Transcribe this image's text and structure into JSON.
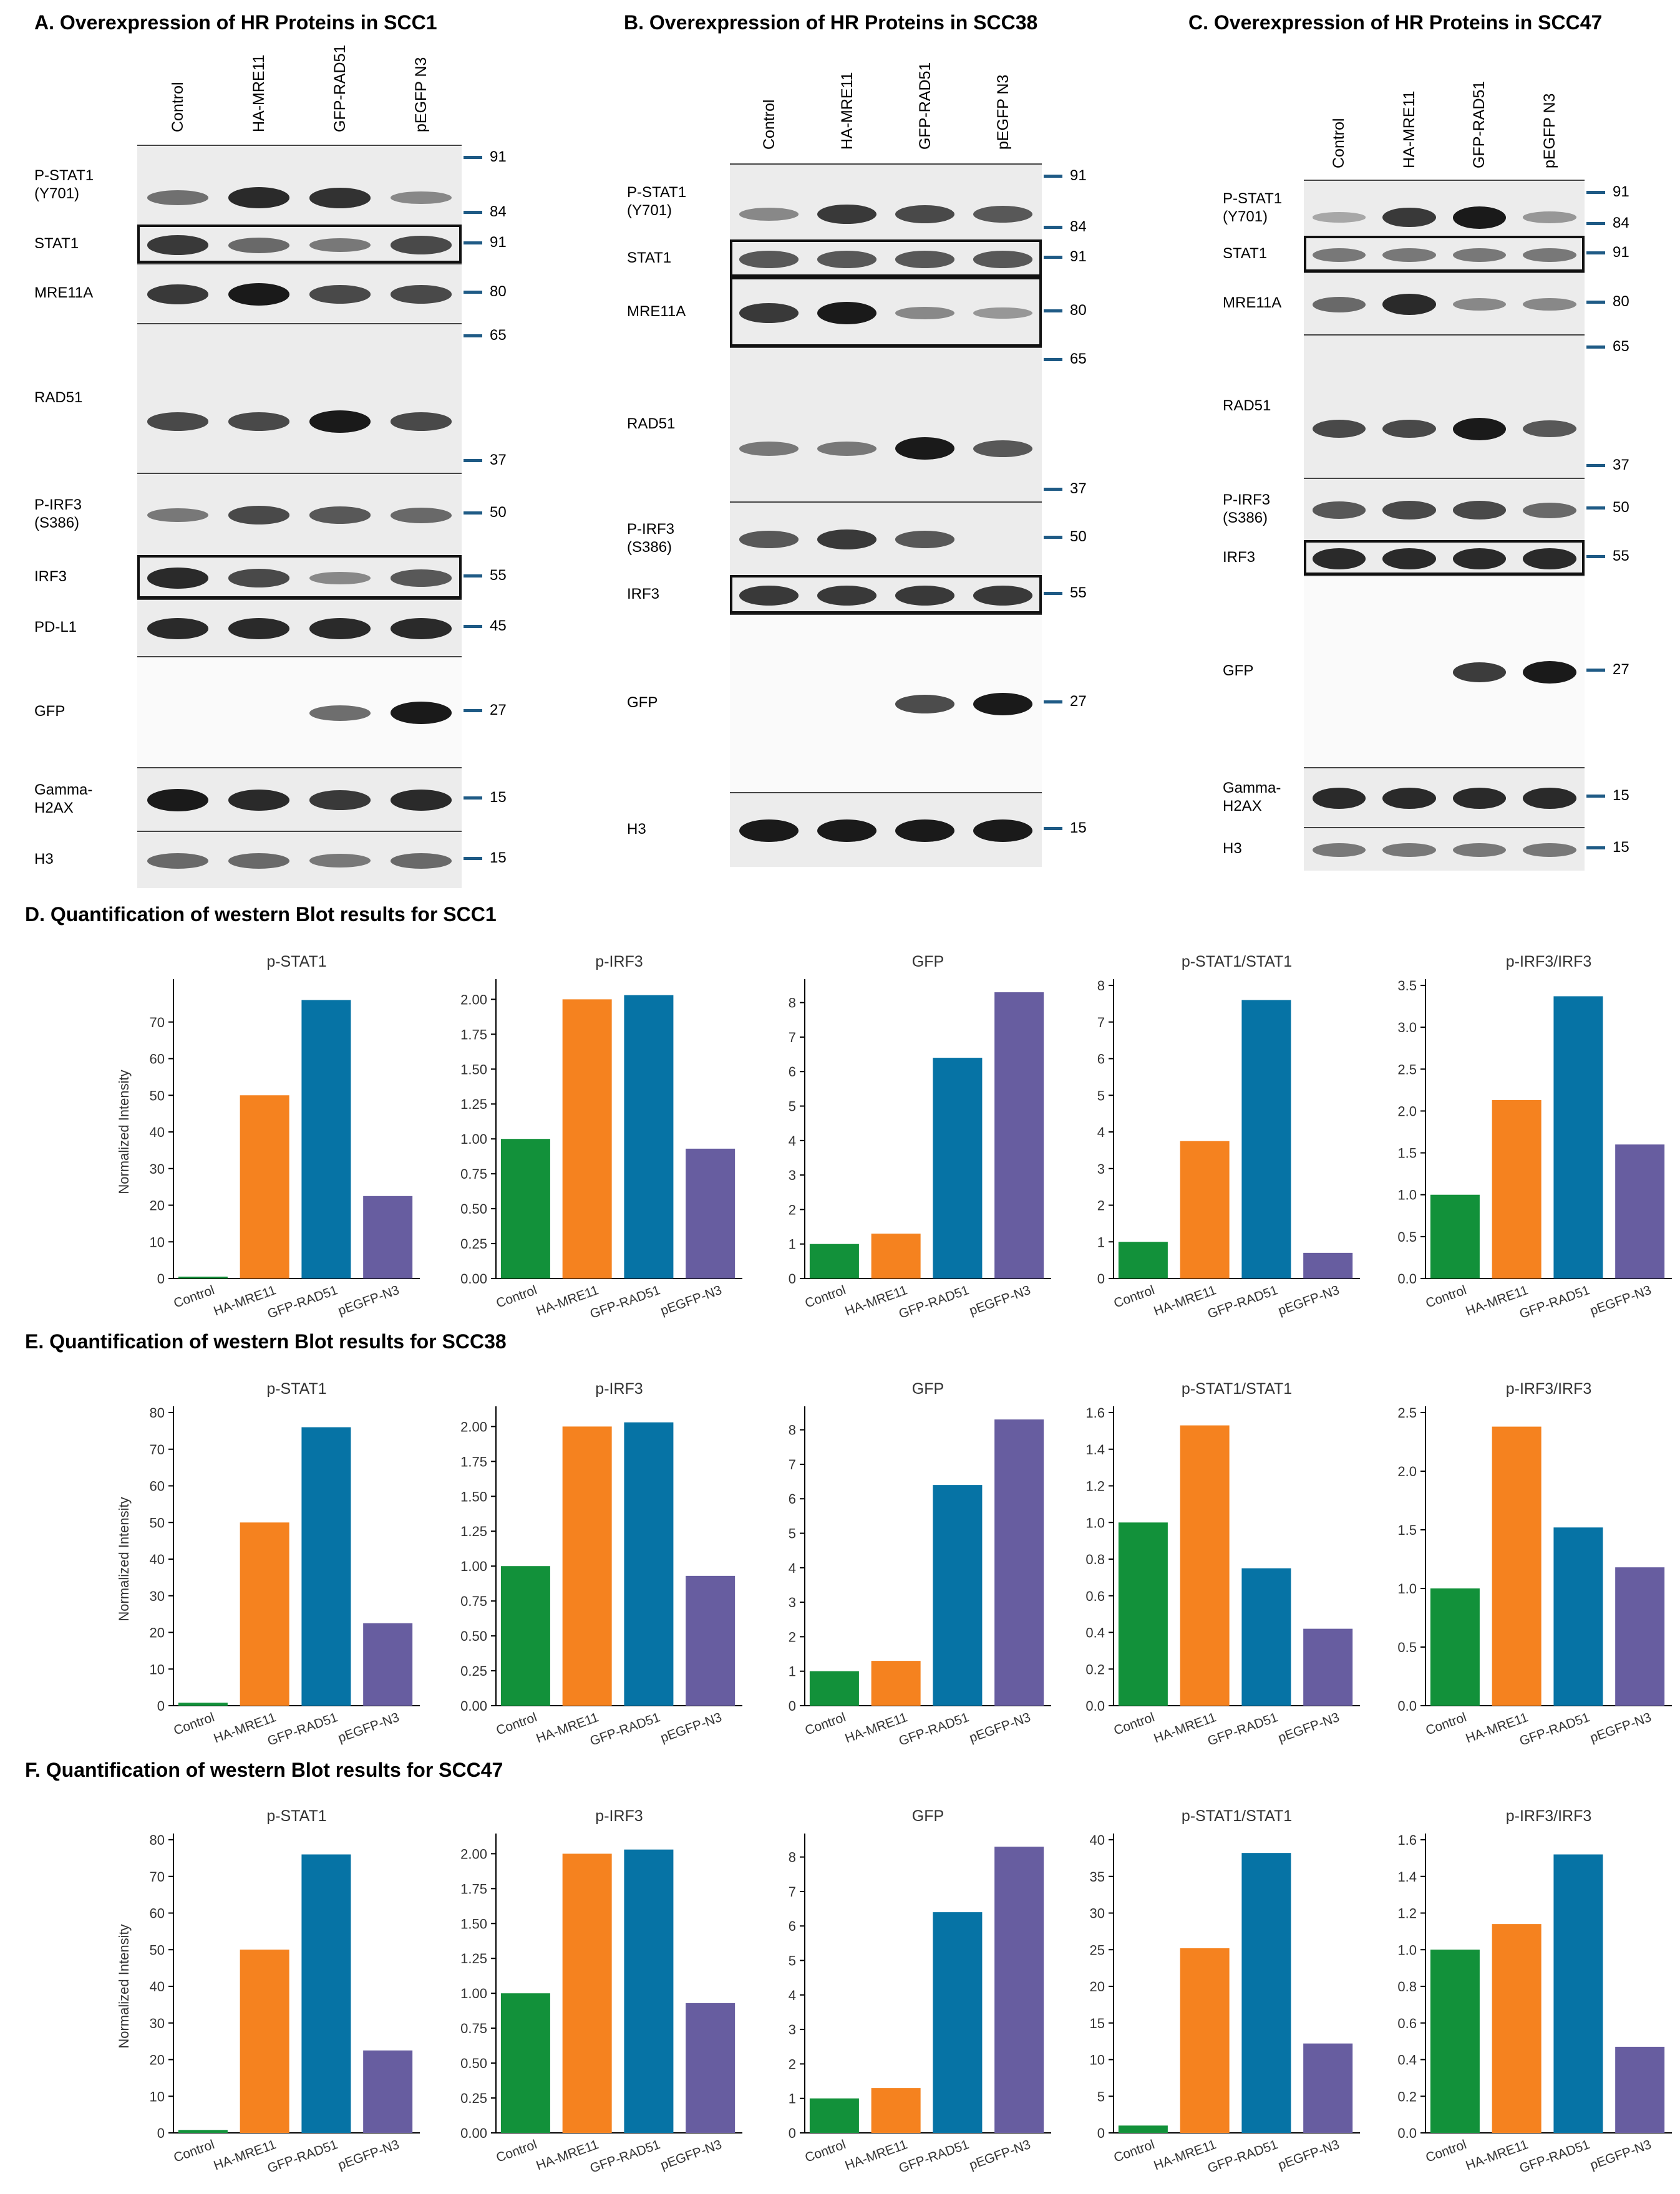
{
  "blots": [
    {
      "title": "A. Overexpression of HR Proteins in SCC1",
      "lanes": [
        "Control",
        "HA-MRE11",
        "GFP-RAD51",
        "pEGFP N3"
      ],
      "rows": [
        {
          "label": "P-STAT1\n(Y701)",
          "markers": [
            "91",
            "84"
          ],
          "intensity": [
            0.45,
            0.9,
            0.85,
            0.3
          ]
        },
        {
          "label": "STAT1",
          "markers": [
            "91"
          ],
          "intensity": [
            0.8,
            0.5,
            0.4,
            0.7
          ]
        },
        {
          "label": "MRE11A",
          "markers": [
            "80"
          ],
          "intensity": [
            0.8,
            1.0,
            0.7,
            0.7
          ]
        },
        {
          "label": "RAD51",
          "markers": [
            "65",
            "37"
          ],
          "intensity": [
            0.7,
            0.7,
            1.0,
            0.7
          ]
        },
        {
          "label": "P-IRF3\n(S386)",
          "markers": [
            "50"
          ],
          "intensity": [
            0.4,
            0.7,
            0.6,
            0.5
          ]
        },
        {
          "label": "IRF3",
          "markers": [
            "55"
          ],
          "intensity": [
            0.9,
            0.7,
            0.3,
            0.6
          ]
        },
        {
          "label": "PD-L1",
          "markers": [
            "45"
          ],
          "intensity": [
            0.9,
            0.9,
            0.9,
            0.9
          ]
        },
        {
          "label": "GFP",
          "markers": [
            "27"
          ],
          "intensity": [
            0.0,
            0.0,
            0.5,
            1.0
          ]
        },
        {
          "label": "Gamma-\nH2AX",
          "markers": [
            "15"
          ],
          "intensity": [
            1.0,
            0.9,
            0.8,
            0.9
          ]
        },
        {
          "label": "H3",
          "markers": [
            "15"
          ],
          "intensity": [
            0.5,
            0.5,
            0.4,
            0.5
          ]
        }
      ]
    },
    {
      "title": "B. Overexpression of HR Proteins in SCC38",
      "lanes": [
        "Control",
        "HA-MRE11",
        "GFP-RAD51",
        "pEGFP N3"
      ],
      "rows": [
        {
          "label": "P-STAT1\n(Y701)",
          "markers": [
            "91",
            "84"
          ],
          "intensity": [
            0.3,
            0.8,
            0.7,
            0.6
          ]
        },
        {
          "label": "STAT1",
          "markers": [
            "91"
          ],
          "intensity": [
            0.6,
            0.6,
            0.6,
            0.6
          ]
        },
        {
          "label": "MRE11A",
          "markers": [
            "80"
          ],
          "intensity": [
            0.8,
            1.0,
            0.3,
            0.2
          ]
        },
        {
          "label": "RAD51",
          "markers": [
            "65",
            "37"
          ],
          "intensity": [
            0.4,
            0.4,
            1.0,
            0.6
          ]
        },
        {
          "label": "P-IRF3\n(S386)",
          "markers": [
            "50"
          ],
          "intensity": [
            0.6,
            0.8,
            0.6,
            0.0
          ]
        },
        {
          "label": "IRF3",
          "markers": [
            "55"
          ],
          "intensity": [
            0.8,
            0.8,
            0.8,
            0.8
          ]
        },
        {
          "label": "GFP",
          "markers": [
            "27"
          ],
          "intensity": [
            0.0,
            0.0,
            0.7,
            1.0
          ]
        },
        {
          "label": "H3",
          "markers": [
            "15"
          ],
          "intensity": [
            1.0,
            1.0,
            1.0,
            1.0
          ]
        }
      ]
    },
    {
      "title": "C. Overexpression of HR Proteins in SCC47",
      "lanes": [
        "Control",
        "HA-MRE11",
        "GFP-RAD51",
        "pEGFP N3"
      ],
      "rows": [
        {
          "label": "P-STAT1\n(Y701)",
          "markers": [
            "91",
            "84"
          ],
          "intensity": [
            0.1,
            0.8,
            1.0,
            0.2
          ]
        },
        {
          "label": "STAT1",
          "markers": [
            "91"
          ],
          "intensity": [
            0.4,
            0.4,
            0.4,
            0.4
          ]
        },
        {
          "label": "MRE11A",
          "markers": [
            "80"
          ],
          "intensity": [
            0.5,
            0.9,
            0.3,
            0.3
          ]
        },
        {
          "label": "RAD51",
          "markers": [
            "65",
            "37"
          ],
          "intensity": [
            0.7,
            0.7,
            1.0,
            0.6
          ]
        },
        {
          "label": "P-IRF3\n(S386)",
          "markers": [
            "50"
          ],
          "intensity": [
            0.6,
            0.7,
            0.7,
            0.5
          ]
        },
        {
          "label": "IRF3",
          "markers": [
            "55"
          ],
          "intensity": [
            0.9,
            0.9,
            0.9,
            0.9
          ]
        },
        {
          "label": "GFP",
          "markers": [
            "27"
          ],
          "intensity": [
            0.0,
            0.0,
            0.8,
            1.0
          ]
        },
        {
          "label": "Gamma-\nH2AX",
          "markers": [
            "15"
          ],
          "intensity": [
            0.9,
            0.9,
            0.9,
            0.9
          ]
        },
        {
          "label": "H3",
          "markers": [
            "15"
          ],
          "intensity": [
            0.4,
            0.4,
            0.4,
            0.4
          ]
        }
      ]
    }
  ],
  "quant_sections": [
    {
      "title": "D. Quantification of western Blot results for SCC1"
    },
    {
      "title": "E. Quantification of western Blot results for SCC38"
    },
    {
      "title": "F. Quantification of western Blot results for SCC47"
    }
  ],
  "colors": {
    "Control": "#12913a",
    "HA-MRE11": "#f5821f",
    "GFP-RAD51": "#0673a5",
    "pEGFP-N3": "#675da0",
    "marker_tick": "#1e5a85"
  },
  "chart_data": [
    {
      "type": "bar",
      "section": "D",
      "title": "p-STAT1",
      "ylabel": "Normalized Intensity",
      "categories": [
        "Control",
        "HA-MRE11",
        "GFP-RAD51",
        "pEGFP-N3"
      ],
      "values": [
        0.5,
        50,
        76,
        22.5
      ],
      "ylim": [
        0,
        80
      ],
      "ticks": [
        "0",
        "10",
        "20",
        "30",
        "40",
        "50",
        "60",
        "70"
      ]
    },
    {
      "type": "bar",
      "section": "D",
      "title": "p-IRF3",
      "ylabel": "",
      "categories": [
        "Control",
        "HA-MRE11",
        "GFP-RAD51",
        "pEGFP-N3"
      ],
      "values": [
        1.0,
        2.0,
        2.03,
        0.93
      ],
      "ylim": [
        0,
        2.1
      ],
      "ticks": [
        "0.00",
        "0.25",
        "0.50",
        "0.75",
        "1.00",
        "1.25",
        "1.50",
        "1.75",
        "2.00"
      ]
    },
    {
      "type": "bar",
      "section": "D",
      "title": "GFP",
      "ylabel": "",
      "categories": [
        "Control",
        "HA-MRE11",
        "GFP-RAD51",
        "pEGFP-N3"
      ],
      "values": [
        1.0,
        1.3,
        6.4,
        8.3
      ],
      "ylim": [
        0,
        8.5
      ],
      "ticks": [
        "0",
        "1",
        "2",
        "3",
        "4",
        "5",
        "6",
        "7",
        "8"
      ]
    },
    {
      "type": "bar",
      "section": "D",
      "title": "p-STAT1/STAT1",
      "ylabel": "",
      "categories": [
        "Control",
        "HA-MRE11",
        "GFP-RAD51",
        "pEGFP-N3"
      ],
      "values": [
        1.0,
        3.75,
        7.6,
        0.7
      ],
      "ylim": [
        0,
        8
      ],
      "ticks": [
        "0",
        "1",
        "2",
        "3",
        "4",
        "5",
        "6",
        "7",
        "8"
      ]
    },
    {
      "type": "bar",
      "section": "D",
      "title": "p-IRF3/IRF3",
      "ylabel": "",
      "categories": [
        "Control",
        "HA-MRE11",
        "GFP-RAD51",
        "pEGFP-N3"
      ],
      "values": [
        1.0,
        2.13,
        3.37,
        1.6
      ],
      "ylim": [
        0,
        3.5
      ],
      "ticks": [
        "0.0",
        "0.5",
        "1.0",
        "1.5",
        "2.0",
        "2.5",
        "3.0",
        "3.5"
      ]
    },
    {
      "type": "bar",
      "section": "E",
      "title": "p-STAT1",
      "ylabel": "Normalized Intensity",
      "categories": [
        "Control",
        "HA-MRE11",
        "GFP-RAD51",
        "pEGFP-N3"
      ],
      "values": [
        0.8,
        50,
        76,
        22.5
      ],
      "ylim": [
        0,
        80
      ],
      "ticks": [
        "0",
        "10",
        "20",
        "30",
        "40",
        "50",
        "60",
        "70",
        "80"
      ]
    },
    {
      "type": "bar",
      "section": "E",
      "title": "p-IRF3",
      "ylabel": "",
      "categories": [
        "Control",
        "HA-MRE11",
        "GFP-RAD51",
        "pEGFP-N3"
      ],
      "values": [
        1.0,
        2.0,
        2.03,
        0.93
      ],
      "ylim": [
        0,
        2.1
      ],
      "ticks": [
        "0.00",
        "0.25",
        "0.50",
        "0.75",
        "1.00",
        "1.25",
        "1.50",
        "1.75",
        "2.00"
      ]
    },
    {
      "type": "bar",
      "section": "E",
      "title": "GFP",
      "ylabel": "",
      "categories": [
        "Control",
        "HA-MRE11",
        "GFP-RAD51",
        "pEGFP-N3"
      ],
      "values": [
        1.0,
        1.3,
        6.4,
        8.3
      ],
      "ylim": [
        0,
        8.5
      ],
      "ticks": [
        "0",
        "1",
        "2",
        "3",
        "4",
        "5",
        "6",
        "7",
        "8"
      ]
    },
    {
      "type": "bar",
      "section": "E",
      "title": "p-STAT1/STAT1",
      "ylabel": "",
      "categories": [
        "Control",
        "HA-MRE11",
        "GFP-RAD51",
        "pEGFP-N3"
      ],
      "values": [
        1.0,
        1.53,
        0.75,
        0.42
      ],
      "ylim": [
        0,
        1.6
      ],
      "ticks": [
        "0.0",
        "0.2",
        "0.4",
        "0.6",
        "0.8",
        "1.0",
        "1.2",
        "1.4",
        "1.6"
      ]
    },
    {
      "type": "bar",
      "section": "E",
      "title": "p-IRF3/IRF3",
      "ylabel": "",
      "categories": [
        "Control",
        "HA-MRE11",
        "GFP-RAD51",
        "pEGFP-N3"
      ],
      "values": [
        1.0,
        2.38,
        1.52,
        1.18
      ],
      "ylim": [
        0,
        2.5
      ],
      "ticks": [
        "0.0",
        "0.5",
        "1.0",
        "1.5",
        "2.0",
        "2.5"
      ]
    },
    {
      "type": "bar",
      "section": "F",
      "title": "p-STAT1",
      "ylabel": "Normalized Intensity",
      "categories": [
        "Control",
        "HA-MRE11",
        "GFP-RAD51",
        "pEGFP-N3"
      ],
      "values": [
        0.8,
        50,
        76,
        22.5
      ],
      "ylim": [
        0,
        80
      ],
      "ticks": [
        "0",
        "10",
        "20",
        "30",
        "40",
        "50",
        "60",
        "70",
        "80"
      ]
    },
    {
      "type": "bar",
      "section": "F",
      "title": "p-IRF3",
      "ylabel": "",
      "categories": [
        "Control",
        "HA-MRE11",
        "GFP-RAD51",
        "pEGFP-N3"
      ],
      "values": [
        1.0,
        2.0,
        2.03,
        0.93
      ],
      "ylim": [
        0,
        2.1
      ],
      "ticks": [
        "0.00",
        "0.25",
        "0.50",
        "0.75",
        "1.00",
        "1.25",
        "1.50",
        "1.75",
        "2.00"
      ]
    },
    {
      "type": "bar",
      "section": "F",
      "title": "GFP",
      "ylabel": "",
      "categories": [
        "Control",
        "HA-MRE11",
        "GFP-RAD51",
        "pEGFP-N3"
      ],
      "values": [
        1.0,
        1.3,
        6.4,
        8.3
      ],
      "ylim": [
        0,
        8.5
      ],
      "ticks": [
        "0",
        "1",
        "2",
        "3",
        "4",
        "5",
        "6",
        "7",
        "8"
      ]
    },
    {
      "type": "bar",
      "section": "F",
      "title": "p-STAT1/STAT1",
      "ylabel": "",
      "categories": [
        "Control",
        "HA-MRE11",
        "GFP-RAD51",
        "pEGFP-N3"
      ],
      "values": [
        1.0,
        25.2,
        38.2,
        12.2
      ],
      "ylim": [
        0,
        40
      ],
      "ticks": [
        "0",
        "5",
        "10",
        "15",
        "20",
        "25",
        "30",
        "35",
        "40"
      ]
    },
    {
      "type": "bar",
      "section": "F",
      "title": "p-IRF3/IRF3",
      "ylabel": "",
      "categories": [
        "Control",
        "HA-MRE11",
        "GFP-RAD51",
        "pEGFP-N3"
      ],
      "values": [
        1.0,
        1.14,
        1.52,
        0.47
      ],
      "ylim": [
        0,
        1.6
      ],
      "ticks": [
        "0.0",
        "0.2",
        "0.4",
        "0.6",
        "0.8",
        "1.0",
        "1.2",
        "1.4",
        "1.6"
      ]
    }
  ]
}
